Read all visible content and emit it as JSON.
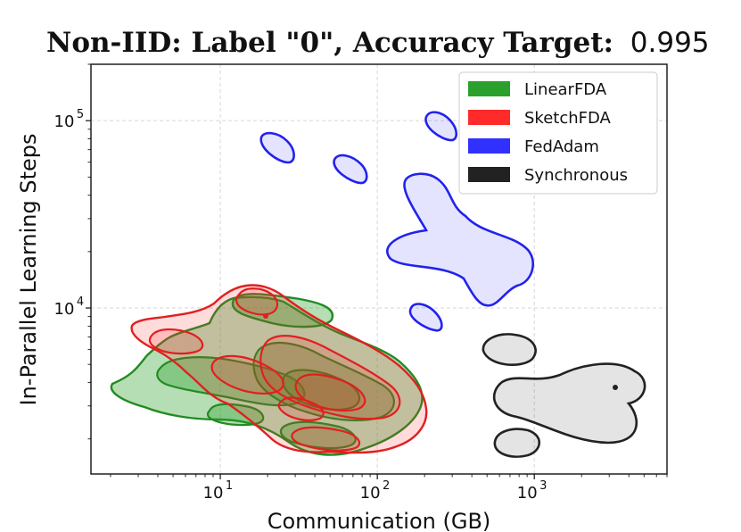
{
  "chart_data": {
    "type": "kde-contour",
    "title": "Non-IID: Label \"0\", Accuracy Target:",
    "title_value": "0.995",
    "xlabel": "Communication (GB)",
    "ylabel": "In-Parallel Learning Steps",
    "xscale": "log",
    "yscale": "log",
    "xlim": [
      1.5,
      7000
    ],
    "ylim": [
      1300,
      200000
    ],
    "x_ticks": [
      {
        "base": "10",
        "exp": "1",
        "value": 10
      },
      {
        "base": "10",
        "exp": "2",
        "value": 100
      },
      {
        "base": "10",
        "exp": "3",
        "value": 1000
      }
    ],
    "y_ticks": [
      {
        "base": "10",
        "exp": "4",
        "value": 10000
      },
      {
        "base": "10",
        "exp": "5",
        "value": 100000
      }
    ],
    "grid": true,
    "legend_position": "top-right",
    "series": [
      {
        "name": "LinearFDA",
        "color": "#2ca02c",
        "edge": "#228B22",
        "center": [
          30,
          3000
        ],
        "x_range": [
          2.5,
          150
        ],
        "y_range": [
          2000,
          9500
        ]
      },
      {
        "name": "SketchFDA",
        "color": "#ff2a2a",
        "edge": "#e02020",
        "center": [
          40,
          3500
        ],
        "x_range": [
          4,
          150
        ],
        "y_range": [
          1900,
          12000
        ]
      },
      {
        "name": "FedAdam",
        "color": "#3030ff",
        "edge": "#2222ee",
        "center": [
          300,
          20000
        ],
        "x_range": [
          15,
          800
        ],
        "y_range": [
          7500,
          105000
        ]
      },
      {
        "name": "Synchronous",
        "color": "#222222",
        "edge": "#222222",
        "center": [
          1500,
          3300
        ],
        "x_range": [
          500,
          5000
        ],
        "y_range": [
          1900,
          6200
        ]
      }
    ]
  }
}
